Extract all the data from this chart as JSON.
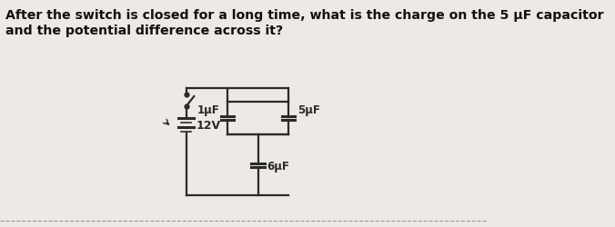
{
  "title_line1": "After the switch is closed for a long time, what is the charge on the 5 μF capacitor",
  "title_line2": "and the potential difference across it?",
  "bg_color": "#ede9e4",
  "text_color": "#111111",
  "circuit_color": "#2a2a2a",
  "voltage": "12V",
  "cap1": "1μF",
  "cap2": "5μF",
  "cap3": "6μF",
  "fig_width": 6.76,
  "fig_height": 2.5,
  "dpi": 100
}
